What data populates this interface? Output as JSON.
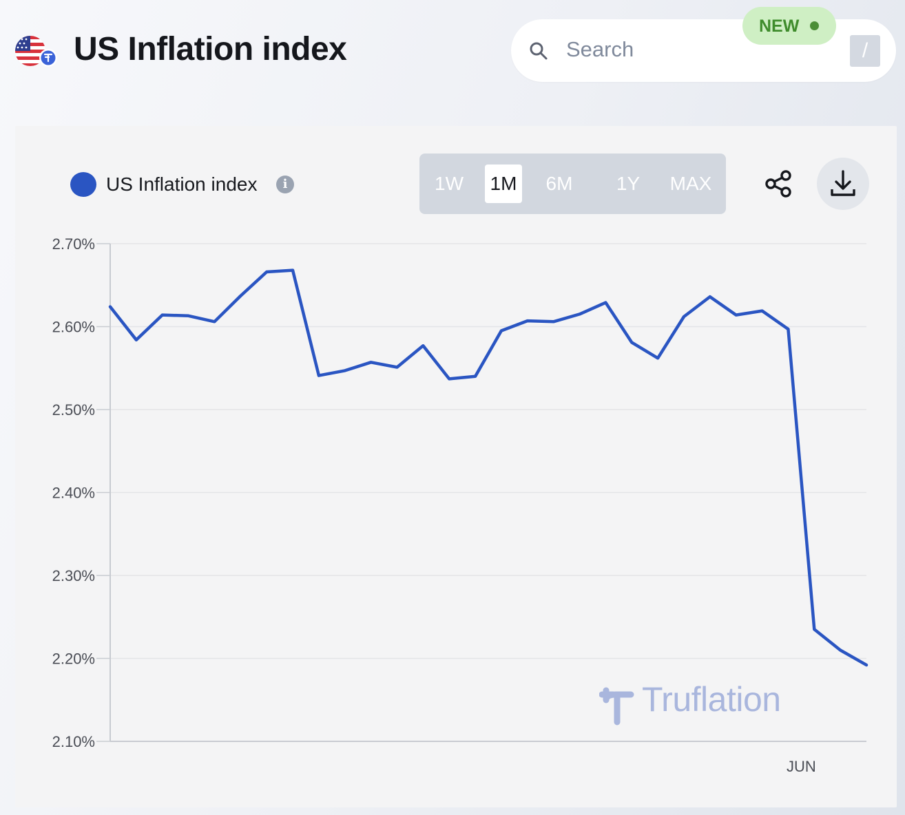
{
  "header": {
    "title": "US Inflation index",
    "flag_icon": "us-flag-icon"
  },
  "search": {
    "placeholder": "Search",
    "shortcut": "/",
    "new_badge": "NEW",
    "new_badge_color": "#3f8c2c"
  },
  "legend": {
    "label": "US Inflation index",
    "info": "i",
    "color": "#2a55c2"
  },
  "ranges": {
    "options": [
      "1W",
      "1M",
      "6M",
      "1Y",
      "MAX"
    ],
    "selected": "1M"
  },
  "actions": {
    "share_icon": "share-icon",
    "download_icon": "download-icon"
  },
  "watermark": {
    "text": "Truflation",
    "color": "#a9b6dd"
  },
  "chart_data": {
    "type": "line",
    "title": "",
    "xlabel": "",
    "ylabel": "",
    "ylim": [
      2.1,
      2.7
    ],
    "yticks": [
      "2.70%",
      "2.60%",
      "2.50%",
      "2.40%",
      "2.30%",
      "2.20%",
      "2.10%"
    ],
    "ytick_values": [
      2.7,
      2.6,
      2.5,
      2.4,
      2.3,
      2.2,
      2.1
    ],
    "xtick_labels": [
      "JUN"
    ],
    "xtick_label_index": 26.5,
    "grid": "horizontal",
    "series": [
      {
        "name": "US Inflation index",
        "color": "#2a55c2",
        "values": [
          2.624,
          2.584,
          2.614,
          2.613,
          2.606,
          2.637,
          2.666,
          2.668,
          2.541,
          2.547,
          2.557,
          2.551,
          2.577,
          2.537,
          2.54,
          2.595,
          2.607,
          2.606,
          2.615,
          2.629,
          2.581,
          2.562,
          2.612,
          2.636,
          2.614,
          2.619,
          2.597,
          2.235,
          2.21,
          2.192
        ]
      }
    ]
  }
}
